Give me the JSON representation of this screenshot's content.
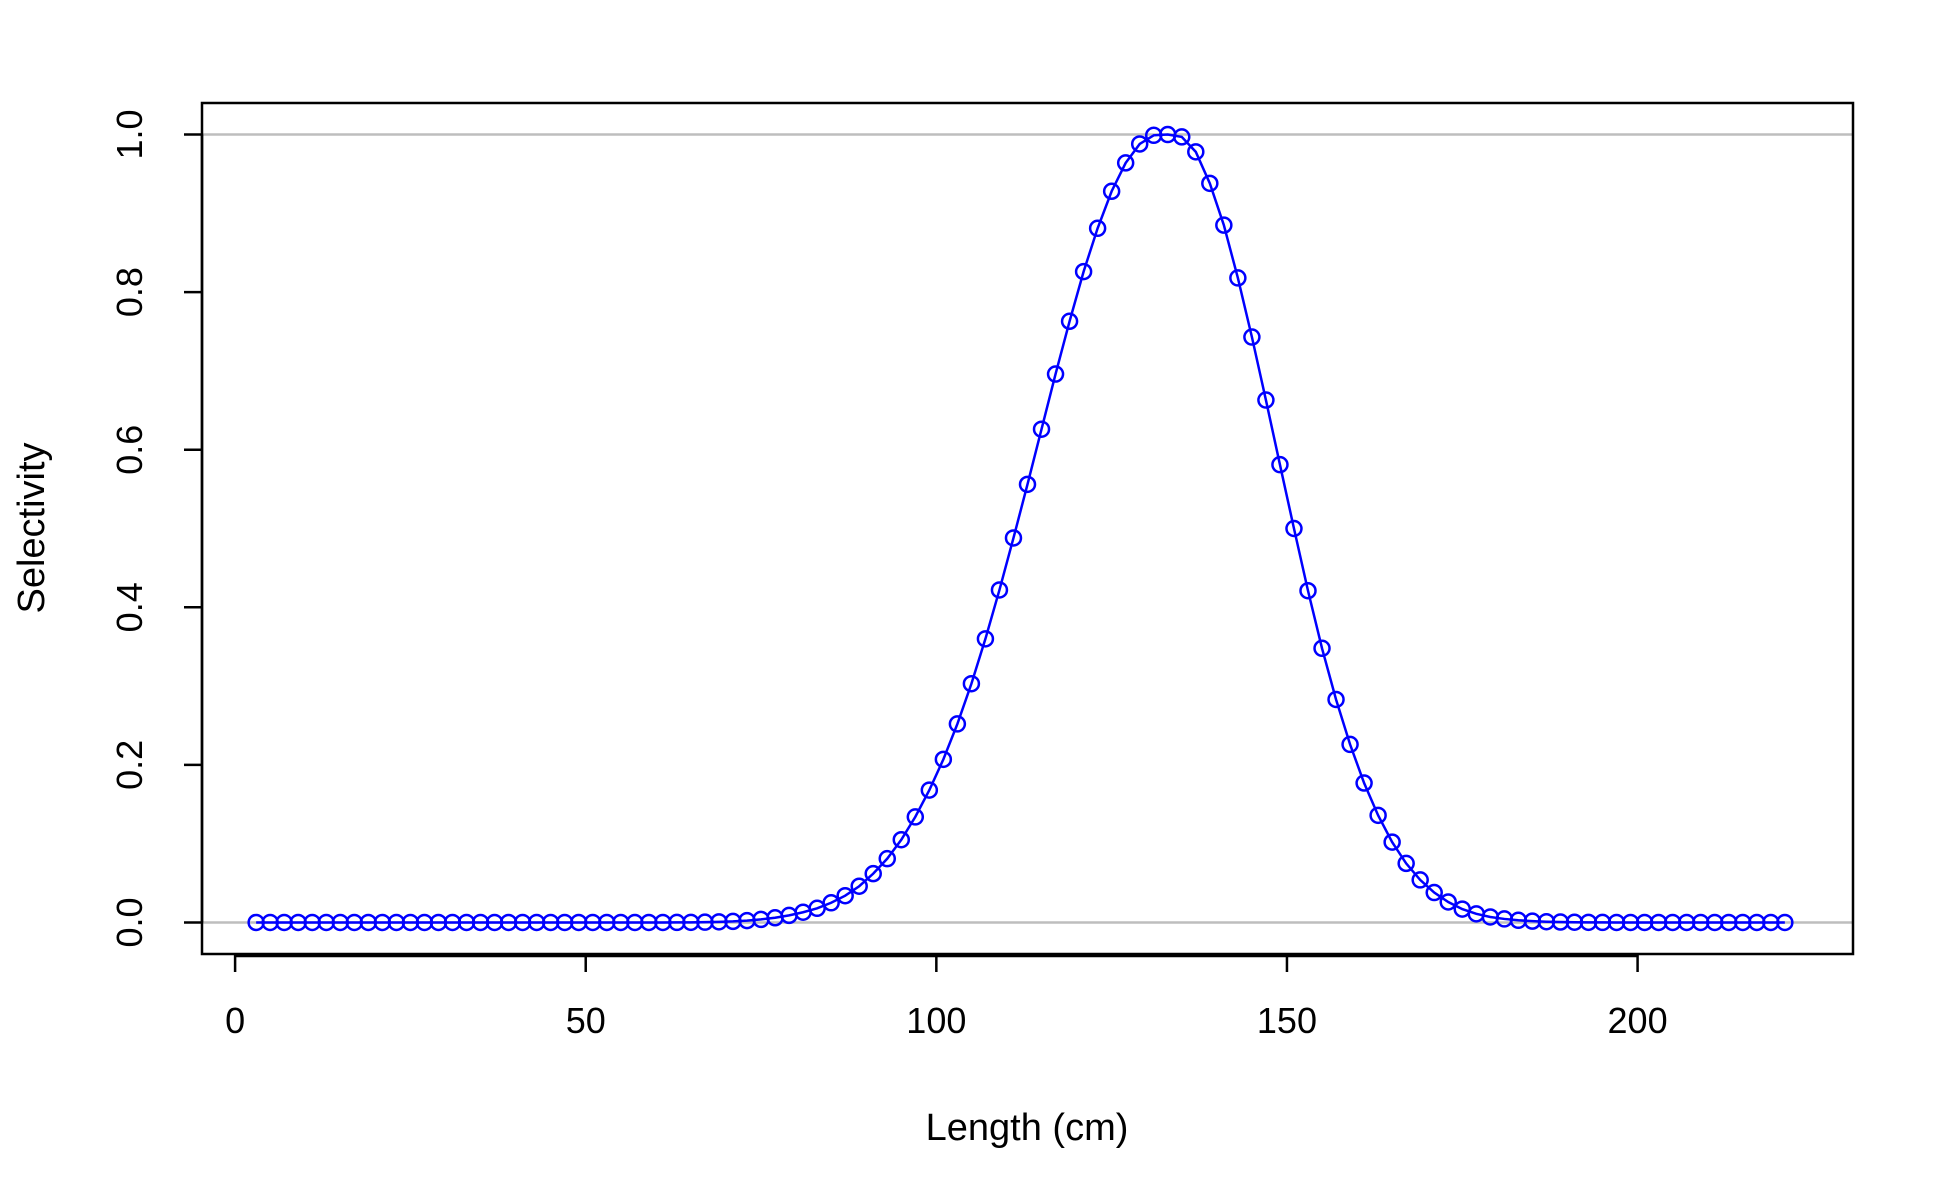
{
  "chart_data": {
    "type": "line",
    "title": "",
    "xlabel": "Length (cm)",
    "ylabel": "Selectivity",
    "xlim": [
      -4.72,
      230.72
    ],
    "ylim": [
      -0.04,
      1.04
    ],
    "x_ticks": [
      0,
      50,
      100,
      150,
      200
    ],
    "y_ticks": [
      0.0,
      0.2,
      0.4,
      0.6,
      0.8,
      1.0
    ],
    "x_tick_labels": [
      "0",
      "50",
      "100",
      "150",
      "200"
    ],
    "y_tick_labels": [
      "0.0",
      "0.2",
      "0.4",
      "0.6",
      "0.8",
      "1.0"
    ],
    "reference_lines_y": [
      0,
      1
    ],
    "grid": false,
    "colors": {
      "series": "#0000ff",
      "reference": "#bebebe",
      "axes": "#000000"
    },
    "marker": "open-circle",
    "series": [
      {
        "x": [
          3,
          5,
          7,
          9,
          11,
          13,
          15,
          17,
          19,
          21,
          23,
          25,
          27,
          29,
          31,
          33,
          35,
          37,
          39,
          41,
          43,
          45,
          47,
          49,
          51,
          53,
          55,
          57,
          59,
          61,
          63,
          65,
          67,
          69,
          71,
          73,
          75,
          77,
          79,
          81,
          83,
          85,
          87,
          89,
          91,
          93,
          95,
          97,
          99,
          101,
          103,
          105,
          107,
          109,
          111,
          113,
          115,
          117,
          119,
          121,
          123,
          125,
          127,
          129,
          131,
          133,
          135,
          137,
          139,
          141,
          143,
          145,
          147,
          149,
          151,
          153,
          155,
          157,
          159,
          161,
          163,
          165,
          167,
          169,
          171,
          173,
          175,
          177,
          179,
          181,
          183,
          185,
          187,
          189,
          191,
          193,
          195,
          197,
          199,
          201,
          203,
          205,
          207,
          209,
          211,
          213,
          215,
          217,
          219,
          221
        ],
        "y": [
          0,
          0,
          0,
          0,
          0,
          0,
          0,
          0,
          0,
          0,
          0,
          0,
          0,
          0,
          0,
          0,
          0,
          0,
          0,
          0,
          0,
          0,
          0,
          0,
          0,
          0,
          0,
          0,
          0,
          0,
          0.0001,
          0.0002,
          0.0004,
          0.0008,
          0.0014,
          0.0024,
          0.0039,
          0.006,
          0.009,
          0.013,
          0.018,
          0.025,
          0.034,
          0.046,
          0.062,
          0.081,
          0.105,
          0.134,
          0.168,
          0.207,
          0.252,
          0.303,
          0.36,
          0.422,
          0.488,
          0.556,
          0.626,
          0.696,
          0.763,
          0.826,
          0.881,
          0.928,
          0.964,
          0.988,
          0.999,
          1.0,
          0.997,
          0.978,
          0.938,
          0.885,
          0.818,
          0.743,
          0.663,
          0.581,
          0.5,
          0.421,
          0.348,
          0.283,
          0.226,
          0.177,
          0.136,
          0.102,
          0.075,
          0.054,
          0.038,
          0.026,
          0.017,
          0.011,
          0.007,
          0.0045,
          0.0028,
          0.0017,
          0.001,
          0.0006,
          0.0003,
          0.0002,
          0.0001,
          0,
          0,
          0,
          0,
          0,
          0,
          0,
          0,
          0,
          0,
          0,
          0,
          0
        ]
      }
    ]
  }
}
